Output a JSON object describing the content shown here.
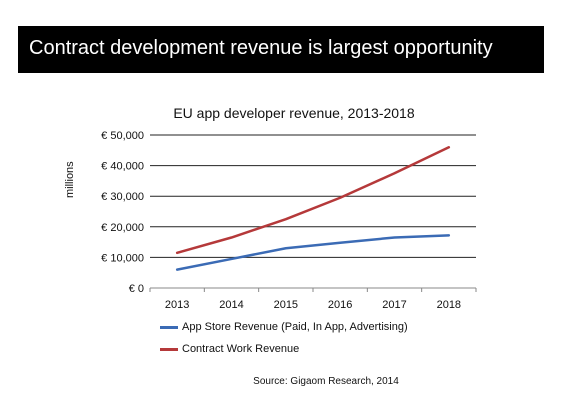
{
  "header": {
    "title": "Contract development revenue is largest opportunity"
  },
  "source": "Source: Gigaom Research, 2014",
  "chart_data": {
    "type": "line",
    "title": "EU app developer revenue, 2013-2018",
    "xlabel": "",
    "ylabel": "millions",
    "categories": [
      "2013",
      "2014",
      "2015",
      "2016",
      "2017",
      "2018"
    ],
    "ylim": [
      0,
      50000
    ],
    "yticks": [
      "€ 0",
      "€ 10,000",
      "€ 20,000",
      "€ 30,000",
      "€ 40,000",
      "€ 50,000"
    ],
    "grid": true,
    "legend_position": "bottom",
    "series": [
      {
        "name": "App Store Revenue (Paid, In App, Advertising)",
        "color": "#3b6bb5",
        "values": [
          6000,
          9500,
          13000,
          14800,
          16500,
          17200
        ]
      },
      {
        "name": "Contract Work Revenue",
        "color": "#b5393a",
        "values": [
          11500,
          16500,
          22500,
          29500,
          37500,
          46000
        ]
      }
    ]
  }
}
